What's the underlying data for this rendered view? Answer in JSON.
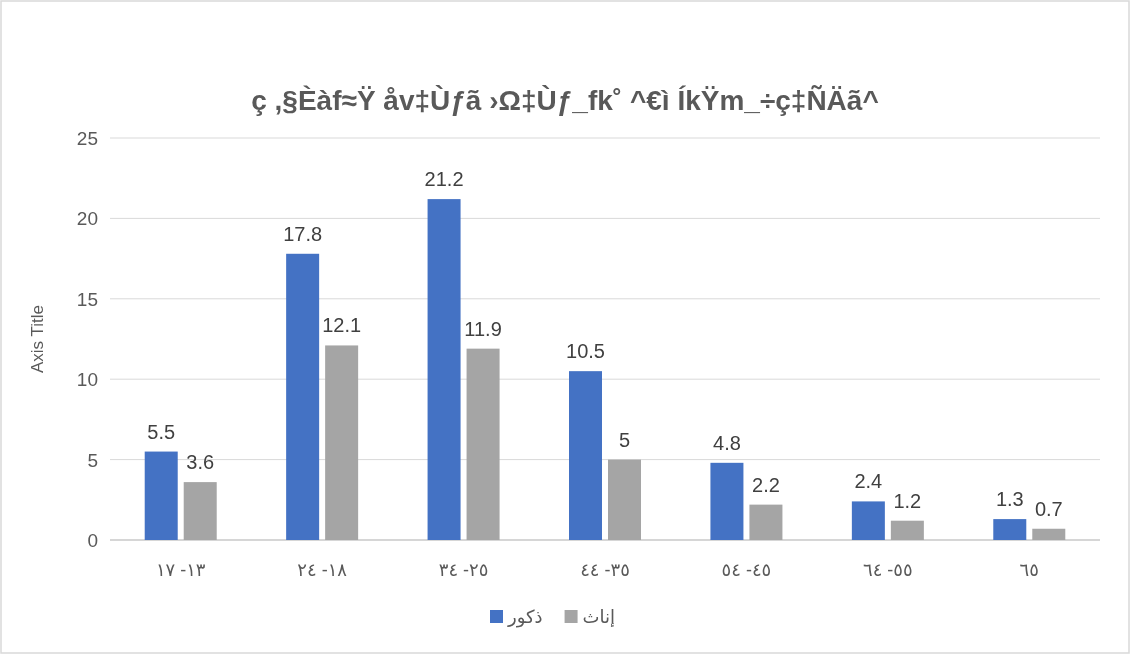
{
  "chart_data": {
    "type": "bar",
    "title": "ç ,§Èàf≈Ÿ åv‡Ùƒã ›Ω‡Ùƒ_fk˚ ^€ì ÍkŸm_÷ç‡ÑÄã^",
    "ylabel": "Axis Title",
    "categories": [
      "١٧ -١٣",
      "٢٤ -١٨",
      "٣٤ -٢٥",
      "٤٤ -٣٥",
      "٥٤ -٤٥",
      "٦٤ -٥٥",
      "٦٥"
    ],
    "series": [
      {
        "name": "ذكور",
        "color": "#4472c4",
        "values": [
          5.5,
          17.8,
          21.2,
          10.5,
          4.8,
          2.4,
          1.3
        ]
      },
      {
        "name": "إناث",
        "color": "#a5a5a5",
        "values": [
          3.6,
          12.1,
          11.9,
          5,
          2.2,
          1.2,
          0.7
        ]
      }
    ],
    "ylim": [
      0,
      25
    ],
    "yticks": [
      0,
      5,
      10,
      15,
      20,
      25
    ],
    "grid": "y",
    "legend": "bottom",
    "data_labels": true
  }
}
